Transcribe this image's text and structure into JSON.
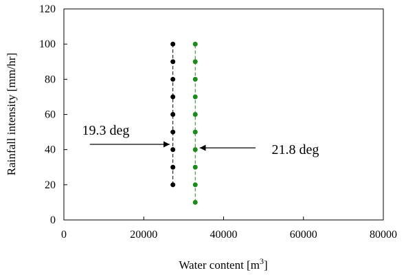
{
  "chart_data": {
    "type": "scatter",
    "title": "",
    "xlabel": "Water content [m",
    "xlabel_sup": "3",
    "xlabel_end": "]",
    "ylabel": "Rainfall intensity [mm/hr]",
    "xlim": [
      0,
      80000
    ],
    "ylim": [
      0,
      120
    ],
    "xticks": [
      0,
      20000,
      40000,
      60000,
      80000
    ],
    "yticks": [
      0,
      20,
      40,
      60,
      80,
      100,
      120
    ],
    "grid": false,
    "legend": "none",
    "series": [
      {
        "color": "#000000",
        "line": "dashed",
        "points": [
          {
            "x": 27300,
            "y": 20
          },
          {
            "x": 27300,
            "y": 30
          },
          {
            "x": 27300,
            "y": 40
          },
          {
            "x": 27300,
            "y": 50
          },
          {
            "x": 27300,
            "y": 60
          },
          {
            "x": 27300,
            "y": 70
          },
          {
            "x": 27300,
            "y": 80
          },
          {
            "x": 27300,
            "y": 90
          },
          {
            "x": 27300,
            "y": 100
          }
        ]
      },
      {
        "color": "#1a8a1a",
        "line": "dashed",
        "points": [
          {
            "x": 32900,
            "y": 10
          },
          {
            "x": 32900,
            "y": 20
          },
          {
            "x": 32900,
            "y": 30
          },
          {
            "x": 32900,
            "y": 40
          },
          {
            "x": 32900,
            "y": 50
          },
          {
            "x": 32900,
            "y": 60
          },
          {
            "x": 32900,
            "y": 70
          },
          {
            "x": 32900,
            "y": 80
          },
          {
            "x": 32900,
            "y": 90
          },
          {
            "x": 32900,
            "y": 100
          }
        ]
      }
    ],
    "annotations": [
      {
        "text": "19.3 deg",
        "arrow_from": {
          "x": 6500,
          "y": 43
        },
        "arrow_to": {
          "x": 26500,
          "y": 43
        }
      },
      {
        "text": "21.8 deg",
        "arrow_from": {
          "x": 48000,
          "y": 41
        },
        "arrow_to": {
          "x": 34000,
          "y": 41
        }
      }
    ]
  }
}
